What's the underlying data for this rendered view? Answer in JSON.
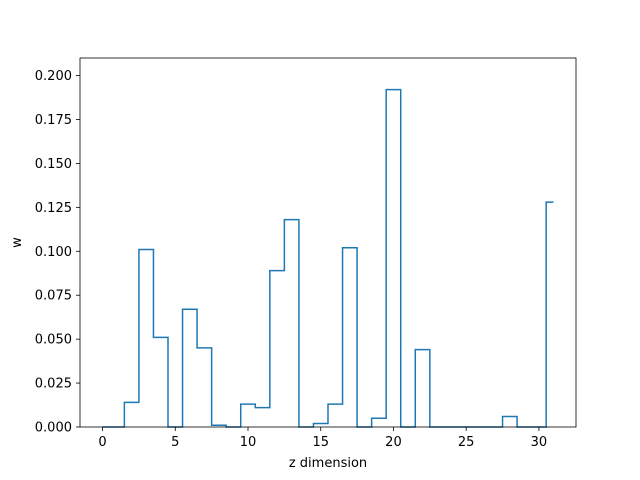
{
  "chart_data": {
    "type": "line",
    "drawstyle": "steps-mid",
    "xlabel": "z dimension",
    "ylabel": "w",
    "xlim": [
      -1.55,
      32.55
    ],
    "ylim": [
      0,
      0.21
    ],
    "xticks": [
      0,
      5,
      10,
      15,
      20,
      25,
      30
    ],
    "xtick_labels": [
      "0",
      "5",
      "10",
      "15",
      "20",
      "25",
      "30"
    ],
    "yticks": [
      0,
      0.025,
      0.05,
      0.075,
      0.1,
      0.125,
      0.15,
      0.175,
      0.2
    ],
    "ytick_labels": [
      "0.000",
      "0.025",
      "0.050",
      "0.075",
      "0.100",
      "0.125",
      "0.150",
      "0.175",
      "0.200"
    ],
    "grid": false,
    "line_color": "#1f77b4",
    "series": [
      {
        "x": [
          0,
          1,
          2,
          3,
          4,
          5,
          6,
          7,
          8,
          9,
          10,
          11,
          12,
          13,
          14,
          15,
          16,
          17,
          18,
          19,
          20,
          21,
          22,
          23,
          24,
          25,
          26,
          27,
          28,
          29,
          30,
          31
        ],
        "values": [
          0.0,
          0.0,
          0.014,
          0.101,
          0.051,
          0.0,
          0.067,
          0.045,
          0.001,
          0.0,
          0.013,
          0.011,
          0.089,
          0.118,
          0.0,
          0.002,
          0.013,
          0.102,
          0.0,
          0.005,
          0.192,
          0.0,
          0.044,
          0.0,
          0.0,
          0.0,
          0.0,
          0.0,
          0.006,
          0.0,
          0.0,
          0.128
        ]
      }
    ]
  }
}
